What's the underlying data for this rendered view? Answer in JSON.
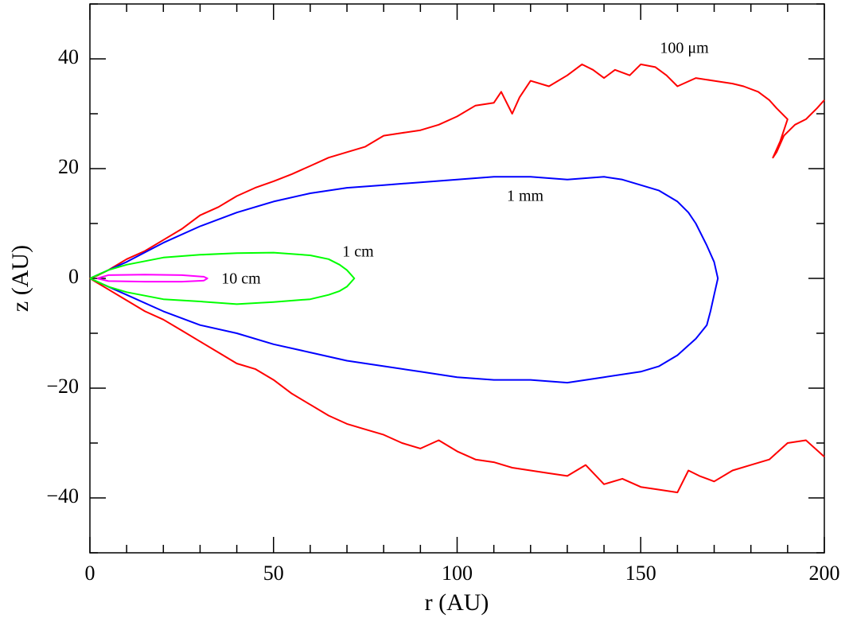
{
  "chart_data": {
    "type": "line",
    "xlabel": "r (AU)",
    "ylabel": "z (AU)",
    "xlim": [
      0,
      200
    ],
    "ylim": [
      -50,
      50
    ],
    "xticks": [
      0,
      50,
      100,
      150,
      200
    ],
    "yticks": [
      {
        "value": -40,
        "label": "−40"
      },
      {
        "value": -20,
        "label": "−20"
      },
      0,
      20,
      40
    ],
    "xminorticks": [
      10,
      20,
      30,
      40,
      60,
      70,
      80,
      90,
      110,
      120,
      130,
      140,
      160,
      170,
      180,
      190
    ],
    "yminorticks": [
      -50,
      -30,
      -10,
      10,
      30,
      50
    ],
    "series": [
      {
        "name": "100 μm",
        "color": "#ff0000",
        "x": [
          200,
          198,
          195,
          192,
          189,
          187,
          186,
          188,
          190,
          187,
          185,
          182,
          178,
          175,
          170,
          165,
          160,
          157,
          154,
          150,
          147,
          143,
          140,
          137,
          134,
          130,
          125,
          120,
          117,
          115,
          112,
          110,
          105,
          100,
          95,
          90,
          85,
          80,
          75,
          70,
          65,
          60,
          55,
          50,
          45,
          40,
          35,
          30,
          25,
          20,
          15,
          10,
          5,
          2,
          0,
          2,
          5,
          10,
          15,
          20,
          25,
          30,
          35,
          40,
          45,
          50,
          55,
          60,
          65,
          70,
          75,
          80,
          85,
          90,
          95,
          100,
          105,
          110,
          115,
          120,
          125,
          130,
          135,
          140,
          145,
          150,
          155,
          160,
          163,
          166,
          170,
          175,
          180,
          185,
          190,
          195,
          200
        ],
        "y": [
          32.5,
          31,
          29,
          28,
          26,
          23,
          22,
          25,
          29,
          31,
          32.5,
          34,
          35,
          35.5,
          36,
          36.5,
          35,
          37,
          38.5,
          39,
          37,
          38,
          36.5,
          38,
          39,
          37,
          35,
          36,
          33,
          30,
          34,
          32,
          31.5,
          29.5,
          28,
          27,
          26.5,
          26,
          24,
          23,
          22,
          20.5,
          19,
          17.7,
          16.5,
          15,
          13,
          11.5,
          9,
          7,
          5,
          3.5,
          1.5,
          0.5,
          0,
          -0.8,
          -2,
          -4,
          -6,
          -7.5,
          -9.5,
          -11.5,
          -13.5,
          -15.5,
          -16.5,
          -18.5,
          -21,
          -23,
          -25,
          -26.5,
          -27.5,
          -28.5,
          -30,
          -31,
          -29.5,
          -31.5,
          -33,
          -33.5,
          -34.5,
          -35,
          -35.5,
          -36,
          -34,
          -37.5,
          -36.5,
          -38,
          -38.5,
          -39,
          -35,
          -36,
          -37,
          -35,
          -34,
          -33,
          -30,
          -29.5,
          -32.5
        ]
      },
      {
        "name": "1 mm",
        "color": "#0000ff",
        "x": [
          0,
          5,
          10,
          20,
          30,
          40,
          50,
          60,
          70,
          80,
          90,
          100,
          110,
          120,
          130,
          140,
          145,
          150,
          155,
          160,
          163,
          165,
          168,
          170,
          171,
          170,
          169,
          168,
          165,
          160,
          155,
          150,
          140,
          130,
          120,
          110,
          100,
          90,
          80,
          70,
          60,
          50,
          40,
          30,
          20,
          10,
          5,
          0
        ],
        "y": [
          0,
          1.5,
          3,
          6.5,
          9.5,
          12,
          14,
          15.5,
          16.5,
          17,
          17.5,
          18,
          18.5,
          18.5,
          18,
          18.5,
          18,
          17,
          16,
          14,
          12,
          10,
          6,
          3,
          0,
          -3,
          -6,
          -8.5,
          -11,
          -14,
          -16,
          -17,
          -18,
          -19,
          -18.5,
          -18.5,
          -18,
          -17,
          -16,
          -15,
          -13.5,
          -12,
          -10,
          -8.5,
          -6,
          -3,
          -1.5,
          0
        ]
      },
      {
        "name": "1 cm",
        "color": "#00ff00",
        "x": [
          0,
          5,
          10,
          20,
          30,
          40,
          50,
          60,
          65,
          68,
          70,
          72,
          70,
          68,
          65,
          60,
          50,
          40,
          30,
          20,
          10,
          5,
          0
        ],
        "y": [
          0,
          1.5,
          2.5,
          3.8,
          4.3,
          4.6,
          4.7,
          4.2,
          3.5,
          2.5,
          1.5,
          0,
          -1.5,
          -2.3,
          -3,
          -3.8,
          -4.3,
          -4.7,
          -4.2,
          -3.8,
          -2.5,
          -1.5,
          0
        ]
      },
      {
        "name": "10 cm",
        "color": "#ff00ff",
        "x": [
          2,
          5,
          15,
          25,
          31,
          32,
          31,
          25,
          15,
          5,
          2
        ],
        "y": [
          0,
          0.6,
          0.7,
          0.6,
          0.3,
          0,
          -0.4,
          -0.6,
          -0.6,
          -0.5,
          0
        ]
      }
    ]
  }
}
